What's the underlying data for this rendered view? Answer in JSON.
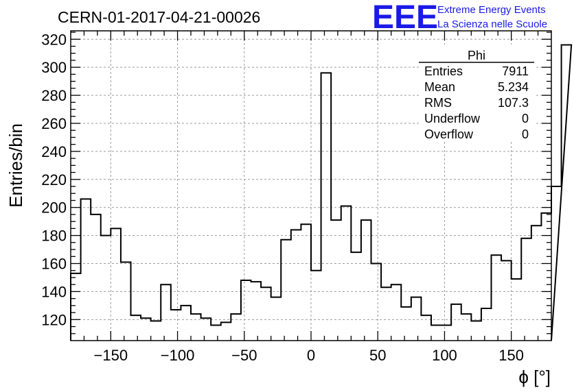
{
  "chart_data": {
    "type": "bar",
    "title": "CERN-01-2017-04-21-00026",
    "xlabel": "ϕ [°]",
    "ylabel": "Entries/bin",
    "xlim": [
      -180,
      180
    ],
    "ylim": [
      105,
      326
    ],
    "x_ticks": [
      -150,
      -100,
      -50,
      0,
      50,
      100,
      150
    ],
    "y_ticks": [
      120,
      140,
      160,
      180,
      200,
      220,
      240,
      260,
      280,
      300,
      320
    ],
    "grid": true,
    "bin_edges_start": -180,
    "bin_width": 7.5,
    "values": [
      153,
      206,
      195,
      180,
      185,
      161,
      123,
      121,
      119,
      145,
      127,
      130,
      124,
      121,
      116,
      118,
      124,
      148,
      147,
      143,
      136,
      177,
      184,
      188,
      155,
      296,
      191,
      201,
      168,
      191,
      160,
      143,
      145,
      129,
      136,
      123,
      116,
      116,
      131,
      124,
      119,
      128,
      166,
      162,
      149,
      178,
      187,
      196,
      215,
      316
    ],
    "color": "#000000",
    "stats_box": {
      "title": "Phi",
      "rows": [
        {
          "label": "Entries",
          "value": "7911"
        },
        {
          "label": "Mean",
          "value": "5.234"
        },
        {
          "label": "RMS",
          "value": "107.3"
        },
        {
          "label": "Underflow",
          "value": "0"
        },
        {
          "label": "Overflow",
          "value": "0"
        }
      ]
    }
  },
  "logo": {
    "mark": "EEE",
    "line1": "Extreme Energy Events",
    "line2": "La Scienza nelle Scuole",
    "color": "#1a1ae6"
  }
}
